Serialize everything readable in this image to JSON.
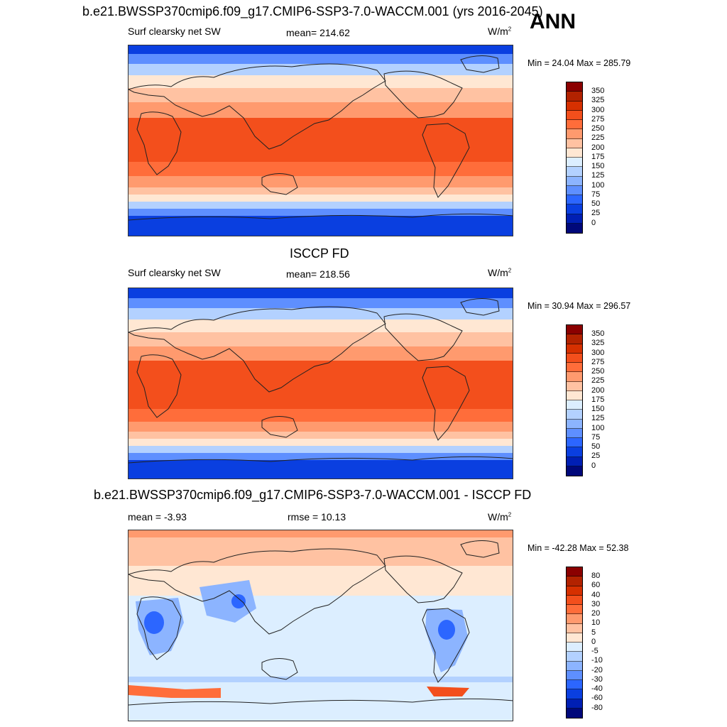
{
  "page": {
    "main_title": "b.e21.BWSSP370cmip6.f09_g17.CMIP6-SSP3-7.0-WACCM.001 (yrs 2016-2045)",
    "season": "ANN"
  },
  "panels": [
    {
      "title": "",
      "left_label": "Surf clearsky net SW",
      "center_label": "mean= 214.62",
      "units_base": "W/m",
      "units_exp": "2",
      "minmax": "Min =  24.04 Max = 285.79",
      "colorbar": {
        "labels": [
          "350",
          "325",
          "300",
          "275",
          "250",
          "225",
          "200",
          "175",
          "150",
          "125",
          "100",
          "75",
          "50",
          "25",
          "0"
        ],
        "colors": [
          "#8b0000",
          "#b22200",
          "#d63000",
          "#f34f1c",
          "#ff6d3a",
          "#ff9a6e",
          "#ffc2a2",
          "#ffe7d3",
          "#dceeff",
          "#b3d1ff",
          "#8cb4ff",
          "#5e8fff",
          "#2c66ff",
          "#0a3fe0",
          "#001fb4",
          "#00087a"
        ]
      }
    },
    {
      "title": "ISCCP FD",
      "left_label": "Surf clearsky net SW",
      "center_label": "mean= 218.56",
      "units_base": "W/m",
      "units_exp": "2",
      "minmax": "Min =  30.94 Max = 296.57",
      "colorbar": {
        "labels": [
          "350",
          "325",
          "300",
          "275",
          "250",
          "225",
          "200",
          "175",
          "150",
          "125",
          "100",
          "75",
          "50",
          "25",
          "0"
        ],
        "colors": [
          "#8b0000",
          "#b22200",
          "#d63000",
          "#f34f1c",
          "#ff6d3a",
          "#ff9a6e",
          "#ffc2a2",
          "#ffe7d3",
          "#dceeff",
          "#b3d1ff",
          "#8cb4ff",
          "#5e8fff",
          "#2c66ff",
          "#0a3fe0",
          "#001fb4",
          "#00087a"
        ]
      }
    },
    {
      "title": "b.e21.BWSSP370cmip6.f09_g17.CMIP6-SSP3-7.0-WACCM.001 - ISCCP FD",
      "left_label": "mean =  -3.93",
      "center_label": "rmse =  10.13",
      "units_base": "W/m",
      "units_exp": "2",
      "minmax": "Min = -42.28 Max =  52.38",
      "colorbar": {
        "labels": [
          "80",
          "60",
          "40",
          "30",
          "20",
          "10",
          "5",
          "0",
          "-5",
          "-10",
          "-20",
          "-30",
          "-40",
          "-60",
          "-80"
        ],
        "colors": [
          "#8b0000",
          "#b22200",
          "#d63000",
          "#f34f1c",
          "#ff6d3a",
          "#ff9a6e",
          "#ffc2a2",
          "#ffe7d3",
          "#dceeff",
          "#b3d1ff",
          "#8cb4ff",
          "#5e8fff",
          "#2c66ff",
          "#0a3fe0",
          "#001fb4",
          "#00087a"
        ]
      }
    }
  ]
}
